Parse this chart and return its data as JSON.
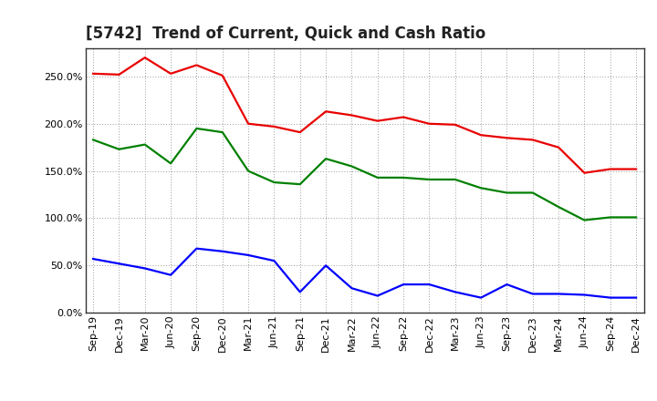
{
  "title": "[5742]  Trend of Current, Quick and Cash Ratio",
  "x_labels": [
    "Sep-19",
    "Dec-19",
    "Mar-20",
    "Jun-20",
    "Sep-20",
    "Dec-20",
    "Mar-21",
    "Jun-21",
    "Sep-21",
    "Dec-21",
    "Mar-22",
    "Jun-22",
    "Sep-22",
    "Dec-22",
    "Mar-23",
    "Jun-23",
    "Sep-23",
    "Dec-23",
    "Mar-24",
    "Jun-24",
    "Sep-24",
    "Dec-24"
  ],
  "current_ratio": [
    253,
    252,
    270,
    253,
    262,
    251,
    200,
    197,
    191,
    213,
    209,
    203,
    207,
    200,
    199,
    188,
    185,
    183,
    175,
    148,
    152,
    152
  ],
  "quick_ratio": [
    183,
    173,
    178,
    158,
    195,
    191,
    150,
    138,
    136,
    163,
    155,
    143,
    143,
    141,
    141,
    132,
    127,
    127,
    112,
    98,
    101,
    101
  ],
  "cash_ratio": [
    57,
    52,
    47,
    40,
    68,
    65,
    61,
    55,
    22,
    50,
    26,
    18,
    30,
    30,
    22,
    16,
    30,
    20,
    20,
    19,
    16,
    16
  ],
  "ylim": [
    0,
    280
  ],
  "yticks": [
    0,
    50,
    100,
    150,
    200,
    250
  ],
  "current_color": "#e80000",
  "quick_color": "#008000",
  "cash_color": "#0000ff",
  "bg_color": "#ffffff",
  "grid_color": "#999999",
  "title_fontsize": 12,
  "legend_fontsize": 9.5,
  "tick_fontsize": 8
}
